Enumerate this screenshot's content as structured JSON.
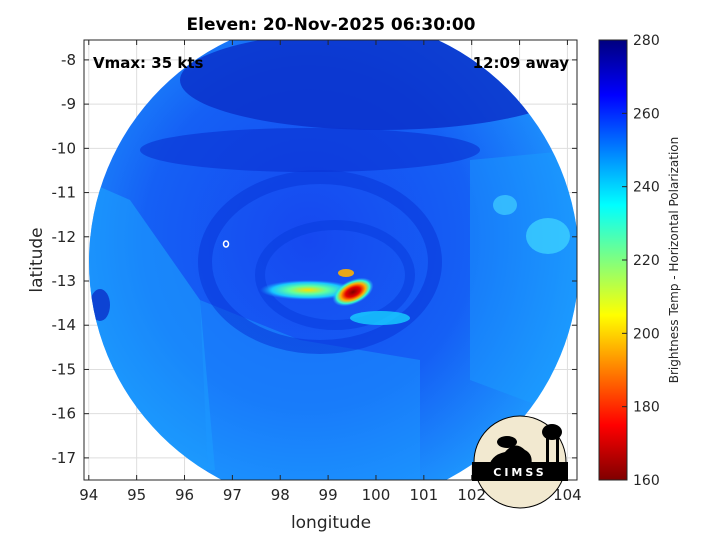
{
  "chart_data": {
    "type": "heatmap",
    "title": "Eleven: 20-Nov-2025 06:30:00",
    "xlabel": "longitude",
    "ylabel": "latitude",
    "xlim": [
      93.9,
      104.2
    ],
    "ylim": [
      -17.5,
      -7.55
    ],
    "x_ticks": [
      "94",
      "95",
      "96",
      "97",
      "98",
      "99",
      "100",
      "101",
      "102",
      "103",
      "104"
    ],
    "y_ticks": [
      "-8",
      "-9",
      "-10",
      "-11",
      "-12",
      "-13",
      "-14",
      "-15",
      "-16",
      "-17"
    ],
    "grid": true,
    "annotations": {
      "vmax": "Vmax: 35 kts",
      "away": "12:09 away"
    },
    "colorbar": {
      "label": "Brightness Temp - Horizontal Polarization",
      "range": [
        160,
        280
      ],
      "ticks": [
        "280",
        "260",
        "240",
        "220",
        "200",
        "180",
        "160"
      ],
      "colormap": "jet"
    },
    "swath": {
      "center": [
        99.1,
        -12.55
      ],
      "radius_deg": 5.0
    },
    "storm_core": {
      "center": [
        99.4,
        -13.15
      ],
      "min_temp": 165
    }
  },
  "logo": {
    "text": "CIMSS"
  },
  "colors": {
    "background": "#0a3fe0",
    "cold_core": "#7f0000",
    "warm_edge": "#00007f"
  }
}
